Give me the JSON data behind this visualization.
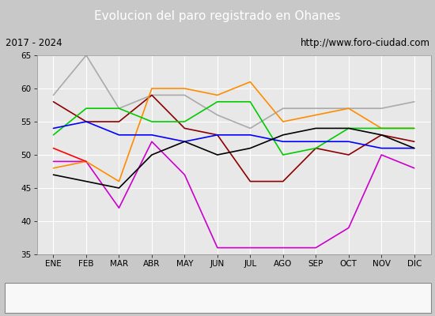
{
  "title": "Evolucion del paro registrado en Ohanes",
  "subtitle_left": "2017 - 2024",
  "subtitle_right": "http://www.foro-ciudad.com",
  "months": [
    "ENE",
    "FEB",
    "MAR",
    "ABR",
    "MAY",
    "JUN",
    "JUL",
    "AGO",
    "SEP",
    "OCT",
    "NOV",
    "DIC"
  ],
  "ylim": [
    35,
    65
  ],
  "yticks": [
    35,
    40,
    45,
    50,
    55,
    60,
    65
  ],
  "series": {
    "2017": {
      "color": "#aaaaaa",
      "values": [
        59,
        65,
        57,
        59,
        59,
        56,
        54,
        57,
        null,
        null,
        57,
        58
      ]
    },
    "2018": {
      "color": "#8b0000",
      "values": [
        58,
        55,
        55,
        59,
        54,
        53,
        46,
        46,
        51,
        50,
        53,
        52
      ]
    },
    "2019": {
      "color": "#cc00cc",
      "values": [
        49,
        49,
        42,
        52,
        47,
        36,
        36,
        36,
        36,
        39,
        50,
        48
      ]
    },
    "2020": {
      "color": "#ff8c00",
      "values": [
        48,
        49,
        46,
        60,
        60,
        59,
        61,
        55,
        56,
        57,
        54,
        54
      ]
    },
    "2021": {
      "color": "#00cc00",
      "values": [
        53,
        57,
        57,
        55,
        55,
        58,
        58,
        50,
        51,
        54,
        54,
        54
      ]
    },
    "2022": {
      "color": "#0000ff",
      "values": [
        54,
        55,
        53,
        53,
        52,
        53,
        53,
        52,
        52,
        52,
        51,
        51
      ]
    },
    "2023": {
      "color": "#000000",
      "values": [
        47,
        46,
        45,
        50,
        52,
        50,
        51,
        53,
        54,
        54,
        53,
        51
      ]
    },
    "2024": {
      "color": "#ff0000",
      "values": [
        51,
        49,
        null,
        null,
        null,
        null,
        null,
        null,
        null,
        null,
        null,
        null
      ]
    }
  },
  "title_bg_color": "#4d86c8",
  "title_font_color": "#ffffff",
  "subtitle_bg_color": "#f0f0f0",
  "plot_bg_color": "#e8e8e8",
  "grid_color": "#ffffff",
  "fig_bg_color": "#c8c8c8",
  "legend_bg_color": "#f8f8f8",
  "legend_border_color": "#888888"
}
